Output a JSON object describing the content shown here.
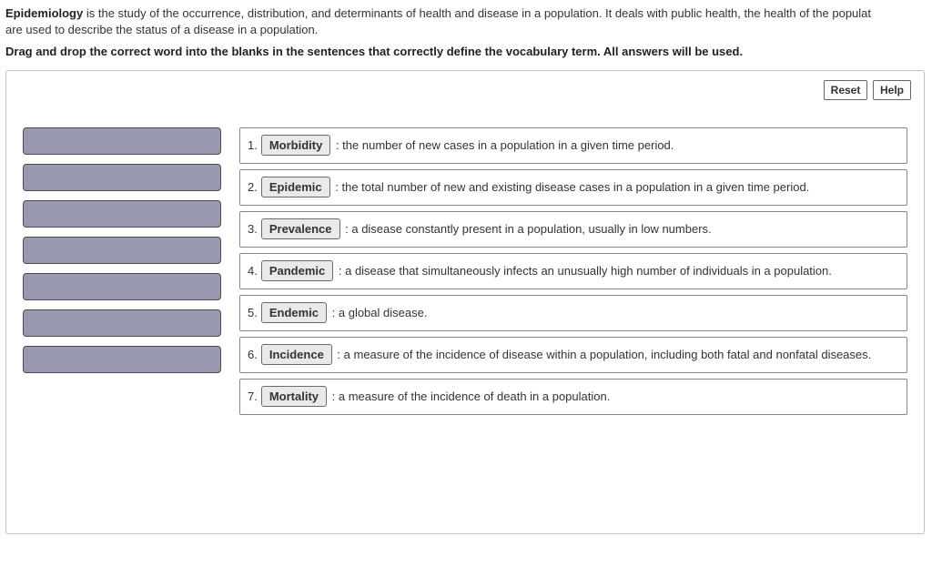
{
  "intro_bold": "Epidemiology",
  "intro_rest": " is the study of the occurrence, distribution, and determinants of health and disease in a population. It deals with public health, the health of the populat",
  "intro_line2": "are used to describe the status of a disease in a population.",
  "instructions": "Drag and drop the correct word into the blanks in the sentences that correctly define the vocabulary term. All answers will be used.",
  "buttons": {
    "reset": "Reset",
    "help": "Help"
  },
  "source_slot_count": 7,
  "definitions": [
    {
      "num": "1.",
      "chip": "Morbidity",
      "text": " : the number of new cases in a population in a given time period."
    },
    {
      "num": "2.",
      "chip": "Epidemic",
      "text": " : the total number of new and existing disease cases in a population in a given time period."
    },
    {
      "num": "3.",
      "chip": "Prevalence",
      "text": " : a disease constantly present in a population, usually in low numbers."
    },
    {
      "num": "4.",
      "chip": "Pandemic",
      "text": " : a disease that simultaneously infects an unusually high number of individuals in a population."
    },
    {
      "num": "5.",
      "chip": "Endemic",
      "text": " : a global disease."
    },
    {
      "num": "6.",
      "chip": "Incidence",
      "text": " : a measure of the incidence of disease within a population, including both fatal and nonfatal diseases."
    },
    {
      "num": "7.",
      "chip": "Mortality",
      "text": " : a measure of the incidence of death in a population."
    }
  ],
  "colors": {
    "slot_fill": "#9898ae",
    "slot_border": "#4a4a5a",
    "chip_fill": "#e9e9e9",
    "chip_border": "#696975",
    "panel_border": "#bfbfbf"
  }
}
